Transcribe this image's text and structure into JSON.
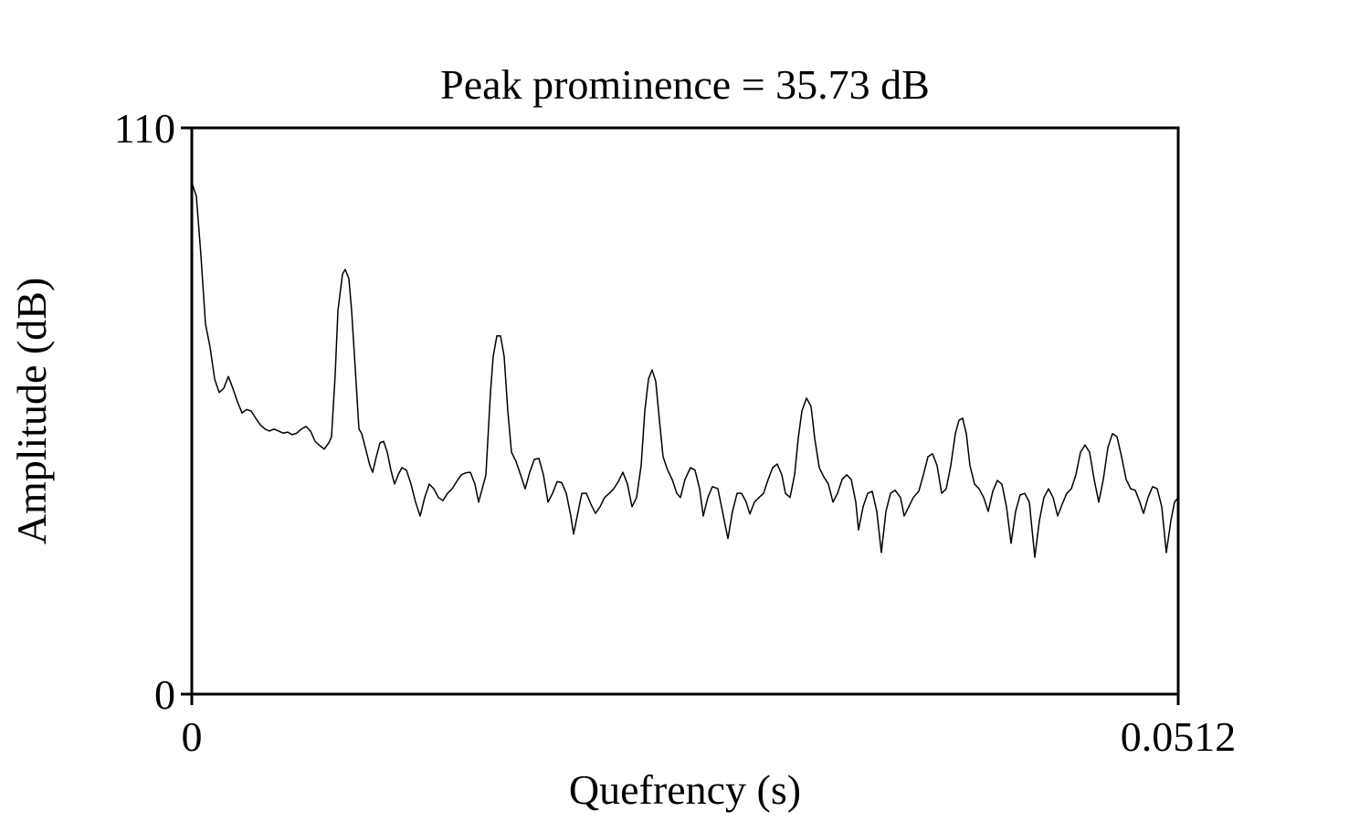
{
  "chart_data": {
    "type": "line",
    "title": "Peak prominence = 35.73 dB",
    "x_label": "Quefrency (s)",
    "y_label": "Amplitude (dB)",
    "xlim": [
      0,
      0.0512
    ],
    "ylim": [
      0,
      110
    ],
    "xticks": [
      0,
      0.0512
    ],
    "yticks": [
      0,
      110
    ],
    "grid": false,
    "series": [
      {
        "color": "#000000",
        "x": [
          0,
          0.000237,
          0.000474,
          0.000711,
          0.000948,
          0.001185,
          0.001422,
          0.001659,
          0.001896,
          0.002133,
          0.00237,
          0.002607,
          0.002844,
          0.003081,
          0.003319,
          0.003556,
          0.003793,
          0.00403,
          0.004267,
          0.004504,
          0.004741,
          0.004978,
          0.005215,
          0.005452,
          0.005689,
          0.005926,
          0.006163,
          0.0064,
          0.006637,
          0.006874,
          0.007111,
          0.007253,
          0.007443,
          0.007585,
          0.007822,
          0.007964,
          0.008154,
          0.008296,
          0.008533,
          0.008676,
          0.008818,
          0.009007,
          0.009244,
          0.009387,
          0.009576,
          0.009766,
          0.009956,
          0.010145,
          0.010335,
          0.010524,
          0.010714,
          0.010904,
          0.011141,
          0.011378,
          0.011615,
          0.011852,
          0.012089,
          0.012326,
          0.012563,
          0.0128,
          0.013037,
          0.013274,
          0.013511,
          0.013748,
          0.013985,
          0.014222,
          0.014459,
          0.014696,
          0.014886,
          0.015075,
          0.015265,
          0.015502,
          0.015644,
          0.015834,
          0.016024,
          0.016213,
          0.016403,
          0.016593,
          0.01683,
          0.017067,
          0.017304,
          0.017541,
          0.017778,
          0.018015,
          0.018252,
          0.018489,
          0.018726,
          0.018963,
          0.0192,
          0.019437,
          0.019674,
          0.019816,
          0.020006,
          0.020243,
          0.02048,
          0.020717,
          0.020954,
          0.021191,
          0.021428,
          0.021665,
          0.021902,
          0.022139,
          0.022376,
          0.022613,
          0.02285,
          0.023087,
          0.023324,
          0.023514,
          0.023704,
          0.023893,
          0.024083,
          0.024273,
          0.024462,
          0.024699,
          0.024936,
          0.025173,
          0.025363,
          0.0256,
          0.025884,
          0.026121,
          0.026358,
          0.026548,
          0.026785,
          0.027022,
          0.027307,
          0.027544,
          0.027828,
          0.028065,
          0.028302,
          0.028539,
          0.028776,
          0.028966,
          0.029203,
          0.02944,
          0.029677,
          0.029914,
          0.030151,
          0.030388,
          0.030625,
          0.030815,
          0.031052,
          0.031289,
          0.031478,
          0.031668,
          0.031905,
          0.032142,
          0.032332,
          0.032569,
          0.032806,
          0.033043,
          0.03328,
          0.033517,
          0.033754,
          0.033991,
          0.034228,
          0.034465,
          0.034607,
          0.034844,
          0.035081,
          0.035318,
          0.035555,
          0.035792,
          0.03603,
          0.036267,
          0.036504,
          0.036788,
          0.036978,
          0.037215,
          0.037452,
          0.037736,
          0.037973,
          0.03821,
          0.038447,
          0.038684,
          0.038921,
          0.039159,
          0.039396,
          0.039633,
          0.039822,
          0.040012,
          0.040202,
          0.040391,
          0.040628,
          0.040865,
          0.041102,
          0.041339,
          0.041576,
          0.041813,
          0.04205,
          0.042287,
          0.042524,
          0.042761,
          0.042998,
          0.043235,
          0.043472,
          0.043757,
          0.043994,
          0.044231,
          0.044468,
          0.044705,
          0.044942,
          0.045179,
          0.045416,
          0.045653,
          0.04589,
          0.046127,
          0.046364,
          0.046601,
          0.046838,
          0.047075,
          0.047313,
          0.04755,
          0.047787,
          0.048024,
          0.048261,
          0.048498,
          0.048735,
          0.048972,
          0.049209,
          0.049398,
          0.049635,
          0.049872,
          0.050109,
          0.050346,
          0.050583,
          0.05082,
          0.05101,
          0.0512
        ],
        "values": [
          99.4,
          96.7,
          85.2,
          71.9,
          67.4,
          61.2,
          58.6,
          59.4,
          61.7,
          59.4,
          56.8,
          54.6,
          55.3,
          55.0,
          53.6,
          52.3,
          51.5,
          51.1,
          51.5,
          51.1,
          50.7,
          50.9,
          50.4,
          50.7,
          51.5,
          52.0,
          51.1,
          49.1,
          48.3,
          47.6,
          48.8,
          50.0,
          62.1,
          74.5,
          81.6,
          82.5,
          80.7,
          74.5,
          60.3,
          51.5,
          50.6,
          47.9,
          44.4,
          43.1,
          46.1,
          48.8,
          49.1,
          47.0,
          43.5,
          40.8,
          42.6,
          44.0,
          43.5,
          40.8,
          37.3,
          34.6,
          38.2,
          40.8,
          39.9,
          38.2,
          37.6,
          39.0,
          39.9,
          41.3,
          42.6,
          43.0,
          43.1,
          40.8,
          37.3,
          39.9,
          42.6,
          58.6,
          65.6,
          69.6,
          69.6,
          65.6,
          55.0,
          47.0,
          45.2,
          42.6,
          39.9,
          43.1,
          45.6,
          45.8,
          42.6,
          37.3,
          39.0,
          41.3,
          41.1,
          39.0,
          34.6,
          31.1,
          34.6,
          39.0,
          39.0,
          36.9,
          35.1,
          36.4,
          38.2,
          39.0,
          39.9,
          41.3,
          43.1,
          40.8,
          36.4,
          38.2,
          44.4,
          55.0,
          61.2,
          63.0,
          60.7,
          53.2,
          46.1,
          43.5,
          41.7,
          39.0,
          38.2,
          41.7,
          44.0,
          43.5,
          39.9,
          34.6,
          38.2,
          40.3,
          39.9,
          35.5,
          30.2,
          35.5,
          39.0,
          39.0,
          37.3,
          35.0,
          37.3,
          38.2,
          39.0,
          41.7,
          44.0,
          44.7,
          42.6,
          39.0,
          38.2,
          42.6,
          49.7,
          55.0,
          57.5,
          55.9,
          49.7,
          44.0,
          42.2,
          40.8,
          37.3,
          39.0,
          41.7,
          42.6,
          41.7,
          37.3,
          31.9,
          36.4,
          39.0,
          39.4,
          35.5,
          27.5,
          35.5,
          39.0,
          39.6,
          38.2,
          34.6,
          36.4,
          38.2,
          39.4,
          42.6,
          46.1,
          46.7,
          44.4,
          39.0,
          39.9,
          44.4,
          50.6,
          53.2,
          53.6,
          50.6,
          44.4,
          40.8,
          39.9,
          38.2,
          35.5,
          39.4,
          41.5,
          40.8,
          36.4,
          29.3,
          35.5,
          38.7,
          39.0,
          37.3,
          26.6,
          33.7,
          38.2,
          39.9,
          38.2,
          34.6,
          36.9,
          39.0,
          39.9,
          42.6,
          47.0,
          48.4,
          47.0,
          41.7,
          37.3,
          41.7,
          47.9,
          50.6,
          50.0,
          46.1,
          41.7,
          39.9,
          39.6,
          37.3,
          35.1,
          38.2,
          40.3,
          39.9,
          36.4,
          27.5,
          33.7,
          37.3,
          38.2
        ]
      }
    ]
  }
}
